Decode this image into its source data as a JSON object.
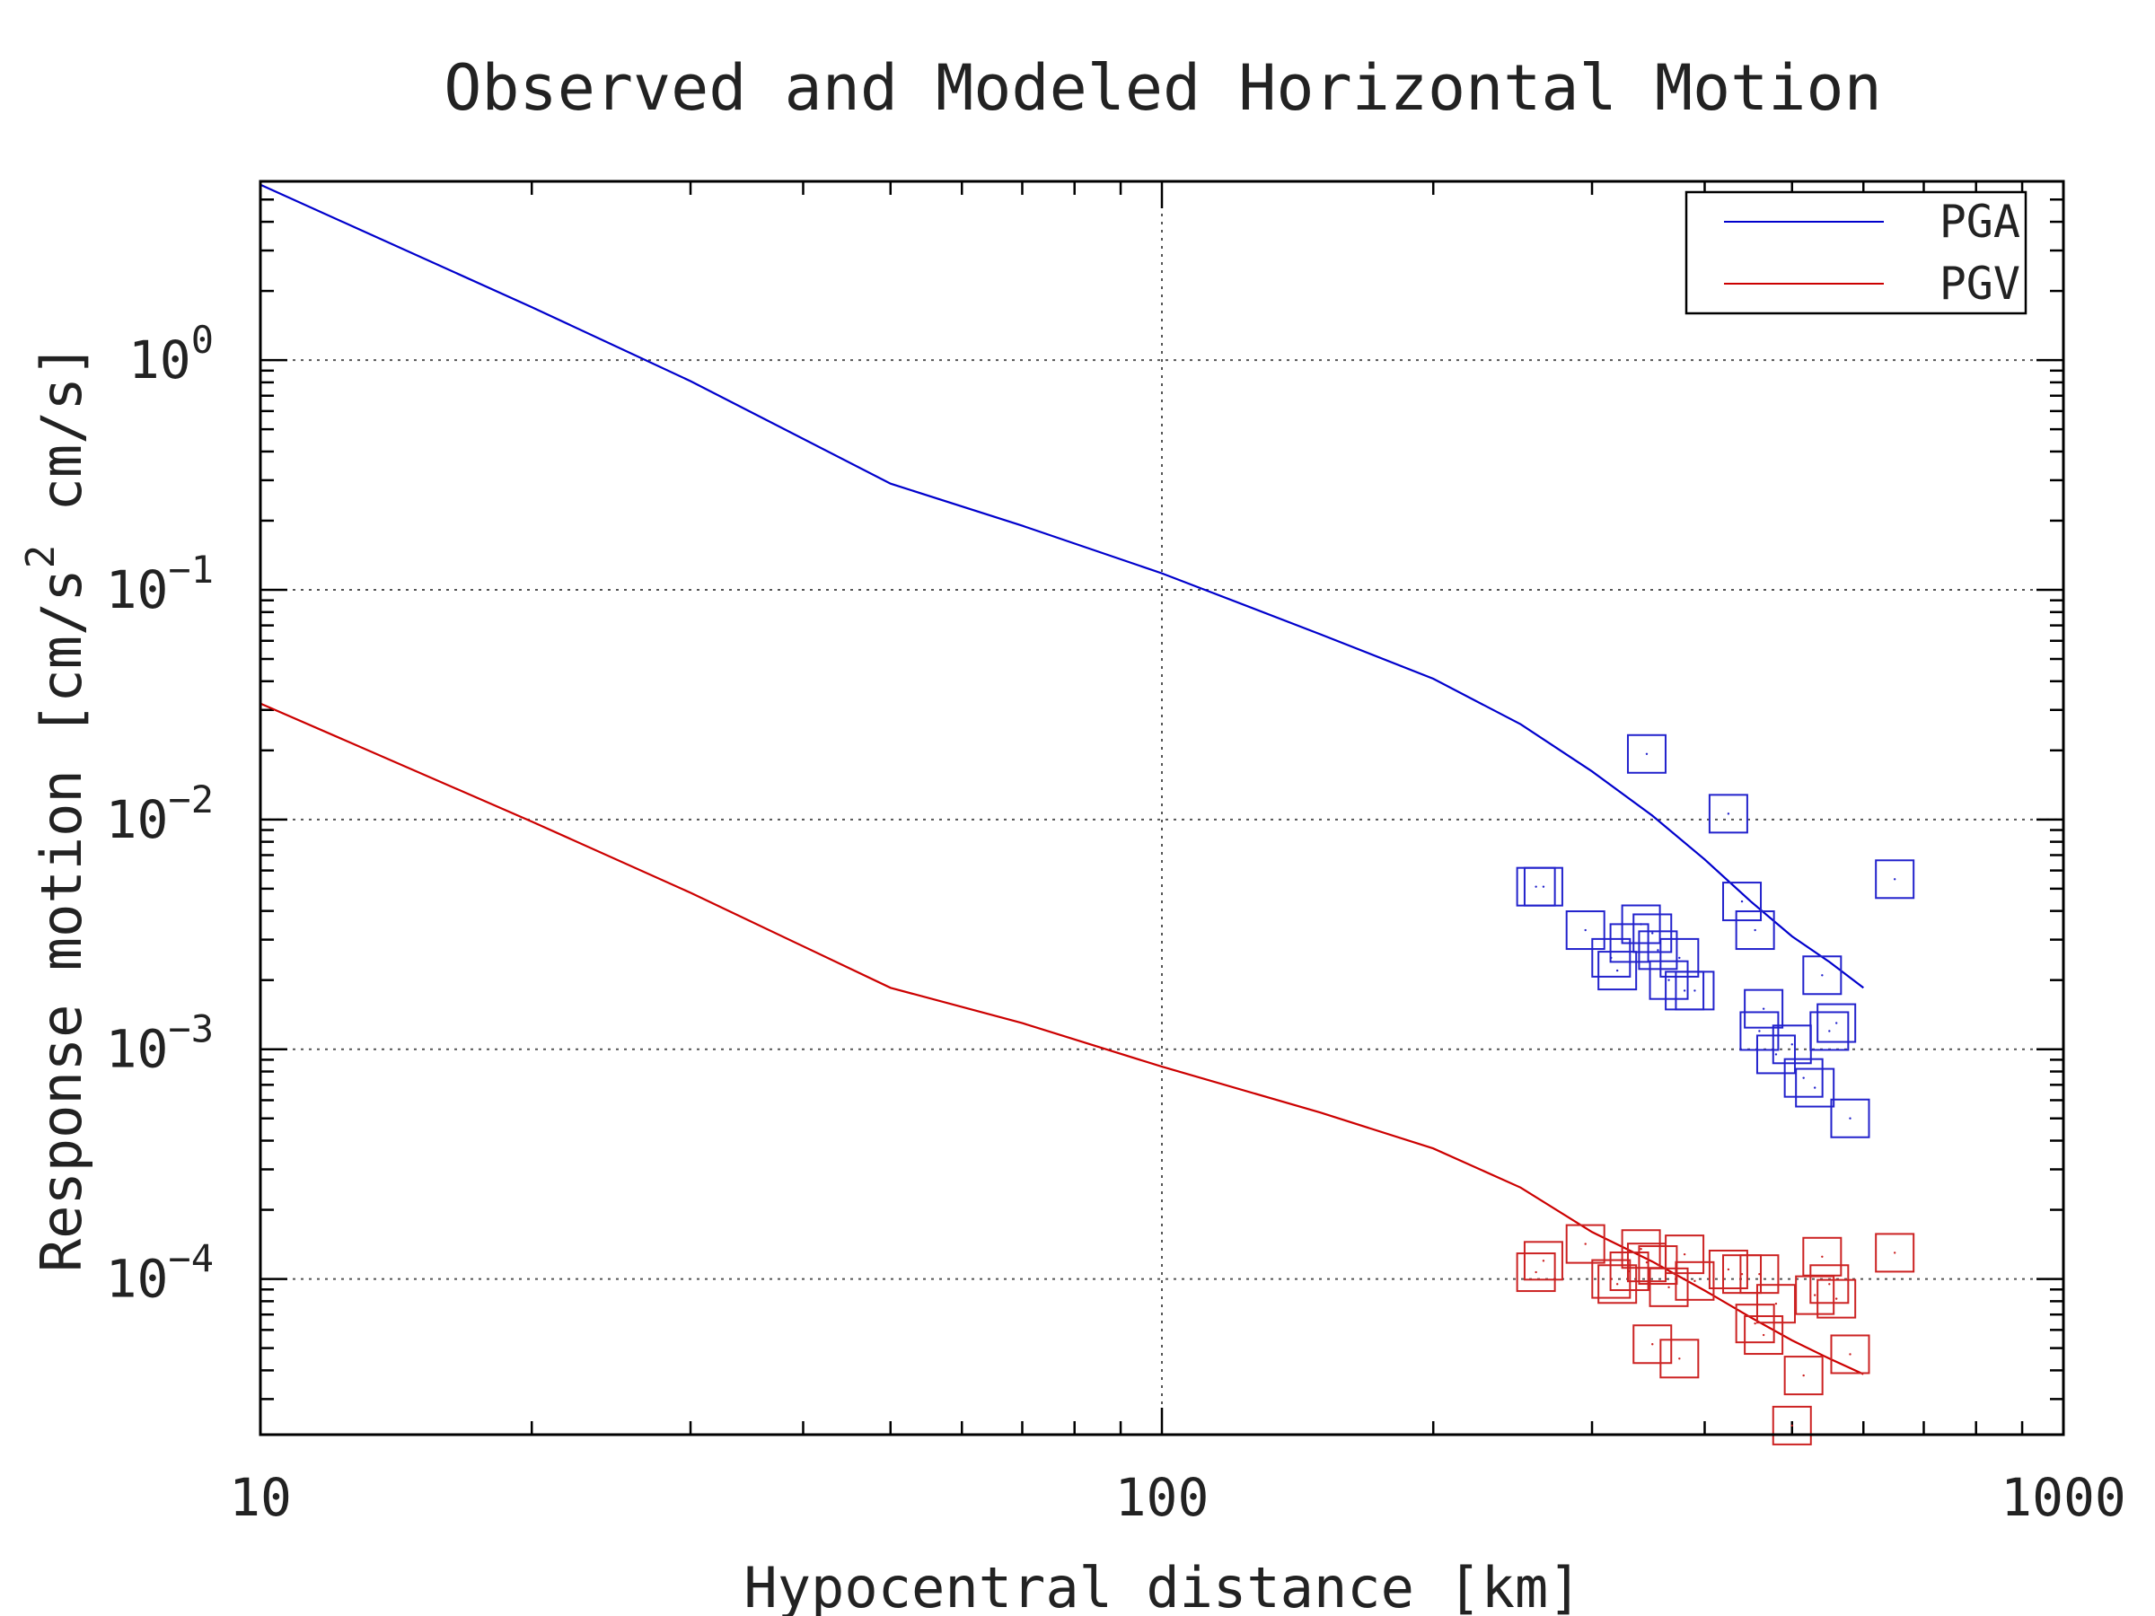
{
  "chart_data": {
    "type": "scatter",
    "title": "Observed and Modeled Horizontal Motion",
    "xlabel": "Hypocentral distance [km]",
    "ylabel": {
      "prefix": "Response motion  [cm/s",
      "sup": "2",
      "suffix": "  cm/s]"
    },
    "x_scale": "log",
    "y_scale": "log",
    "xlim": [
      10,
      1000
    ],
    "ylim": [
      2.1e-05,
      6.0
    ],
    "x_ticks": [
      {
        "value": 10,
        "label": "10"
      },
      {
        "value": 100,
        "label": "100"
      },
      {
        "value": 1000,
        "label": "1000"
      }
    ],
    "y_ticks": [
      {
        "value": 1,
        "base": "10",
        "exp": "0"
      },
      {
        "value": 0.1,
        "base": "10",
        "exp": "−1"
      },
      {
        "value": 0.01,
        "base": "10",
        "exp": "−2"
      },
      {
        "value": 0.001,
        "base": "10",
        "exp": "−3"
      },
      {
        "value": 0.0001,
        "base": "10",
        "exp": "−4"
      }
    ],
    "grid": true,
    "legend_position": "top-right",
    "series": [
      {
        "name": "PGA",
        "kind": "line",
        "color": "#0000cc",
        "x": [
          10,
          20,
          30,
          50,
          70,
          100,
          150,
          200,
          250,
          300,
          350,
          400,
          450,
          500,
          550,
          600
        ],
        "y": [
          5.8,
          1.7,
          0.81,
          0.29,
          0.19,
          0.118,
          0.064,
          0.041,
          0.026,
          0.0162,
          0.0104,
          0.0067,
          0.0044,
          0.0031,
          0.0024,
          0.00185
        ]
      },
      {
        "name": "PGV",
        "kind": "line",
        "color": "#cc0000",
        "x": [
          10,
          20,
          30,
          50,
          70,
          100,
          150,
          200,
          250,
          300,
          350,
          400,
          450,
          500,
          550,
          600
        ],
        "y": [
          0.032,
          0.0098,
          0.0048,
          0.00185,
          0.0013,
          0.00084,
          0.00053,
          0.00037,
          0.00025,
          0.00016,
          0.000119,
          8.9e-05,
          6.8e-05,
          5.4e-05,
          4.5e-05,
          3.85e-05
        ]
      },
      {
        "name": "",
        "kind": "markers",
        "color": "#2222cc",
        "x": [
          260,
          265,
          295,
          315,
          320,
          330,
          340,
          345,
          350,
          355,
          365,
          375,
          380,
          390,
          425,
          440,
          455,
          460,
          465,
          480,
          500,
          515,
          530,
          540,
          550,
          560,
          580,
          650
        ],
        "y": [
          0.0051,
          0.0051,
          0.0033,
          0.0025,
          0.0022,
          0.0029,
          0.0035,
          0.0193,
          0.0032,
          0.0027,
          0.002,
          0.0025,
          0.0018,
          0.0018,
          0.0106,
          0.0044,
          0.0033,
          0.0012,
          0.0015,
          0.00095,
          0.00105,
          0.00075,
          0.00068,
          0.0021,
          0.0012,
          0.0013,
          0.0005,
          0.0055
        ]
      },
      {
        "name": "",
        "kind": "markers",
        "color": "#cc2222",
        "x": [
          260,
          265,
          295,
          315,
          320,
          330,
          340,
          345,
          350,
          355,
          365,
          375,
          380,
          390,
          425,
          440,
          455,
          460,
          465,
          480,
          500,
          515,
          530,
          540,
          550,
          560,
          580,
          650
        ],
        "y": [
          0.000107,
          0.00012,
          0.000142,
          0.0001,
          9.5e-05,
          0.000108,
          0.000135,
          0.000118,
          5.2e-05,
          0.000115,
          9.2e-05,
          4.5e-05,
          0.000128,
          9.8e-05,
          0.00011,
          0.000105,
          6.4e-05,
          0.000105,
          5.7e-05,
          7.8e-05,
          2.3e-05,
          3.8e-05,
          8.5e-05,
          0.000125,
          9.5e-05,
          8.2e-05,
          4.7e-05,
          0.00013
        ]
      }
    ]
  }
}
